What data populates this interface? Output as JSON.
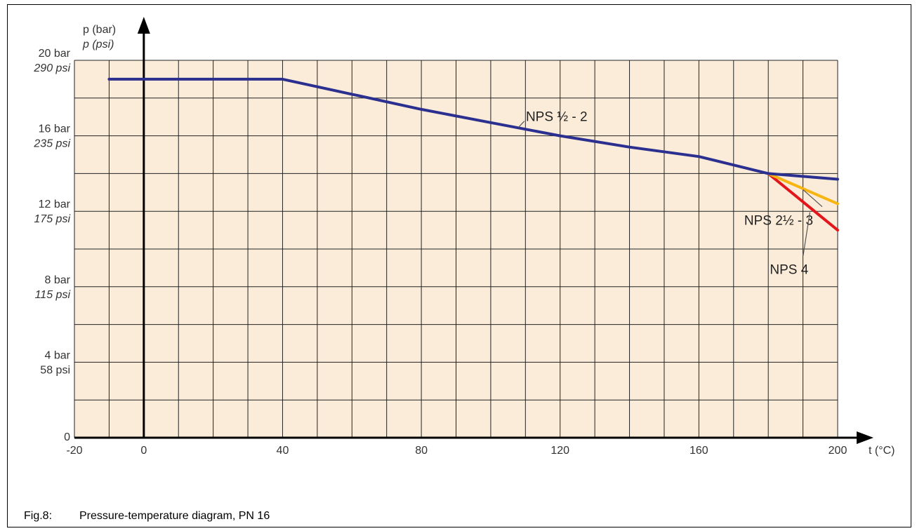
{
  "caption": {
    "label": "Fig.8:",
    "text": "Pressure-temperature diagram, PN 16"
  },
  "chart_data": {
    "type": "line",
    "title": "",
    "xlabel": "t (°C)",
    "ylabel_primary": "p (bar)",
    "ylabel_secondary": "p (psi)",
    "xlim": [
      -20,
      200
    ],
    "ylim": [
      0,
      20
    ],
    "x_ticks": [
      {
        "value": -20,
        "label": "-20"
      },
      {
        "value": 0,
        "label": "0"
      },
      {
        "value": 40,
        "label": "40"
      },
      {
        "value": 80,
        "label": "80"
      },
      {
        "value": 120,
        "label": "120"
      },
      {
        "value": 160,
        "label": "160"
      },
      {
        "value": 200,
        "label": "200"
      }
    ],
    "y_ticks": [
      {
        "value": 0,
        "bar": "0",
        "psi": ""
      },
      {
        "value": 4,
        "bar": "4 bar",
        "psi": "58 psi"
      },
      {
        "value": 8,
        "bar": "8 bar",
        "psi": "115 psi"
      },
      {
        "value": 12,
        "bar": "12 bar",
        "psi": "175 psi"
      },
      {
        "value": 16,
        "bar": "16 bar",
        "psi": "235 psi"
      },
      {
        "value": 20,
        "bar": "20 bar",
        "psi": "290 psi"
      }
    ],
    "grid": true,
    "colors": {
      "background": "#fbecd9",
      "grid": "#222222",
      "axis": "#000000"
    },
    "series": [
      {
        "name": "NPS ½ - 2",
        "color": "#2b2f8f",
        "x": [
          -10,
          40,
          60,
          80,
          100,
          120,
          140,
          160,
          180,
          200
        ],
        "y": [
          19.0,
          19.0,
          18.2,
          17.4,
          16.7,
          16.0,
          15.4,
          14.9,
          14.0,
          13.7
        ]
      },
      {
        "name": "NPS 2½ - 3",
        "color": "#f7b512",
        "x": [
          180,
          200
        ],
        "y": [
          14.0,
          12.4
        ]
      },
      {
        "name": "NPS 4",
        "color": "#e3161b",
        "x": [
          180,
          200
        ],
        "y": [
          14.0,
          11.0
        ]
      }
    ],
    "annotations": [
      {
        "series": 0,
        "text": "NPS ½ - 2",
        "at_x": 108,
        "at_y": 16.45,
        "label_x": 119,
        "label_y": 17.0,
        "anchor": "middle"
      },
      {
        "series": 1,
        "text": "NPS 2½ - 3",
        "at_x": 190,
        "at_y": 13.15,
        "label_x": 183,
        "label_y": 11.5,
        "anchor": "middle"
      },
      {
        "series": 2,
        "text": "NPS 4",
        "at_x": 192,
        "at_y": 11.95,
        "label_x": 186,
        "label_y": 8.9,
        "anchor": "middle"
      }
    ]
  }
}
